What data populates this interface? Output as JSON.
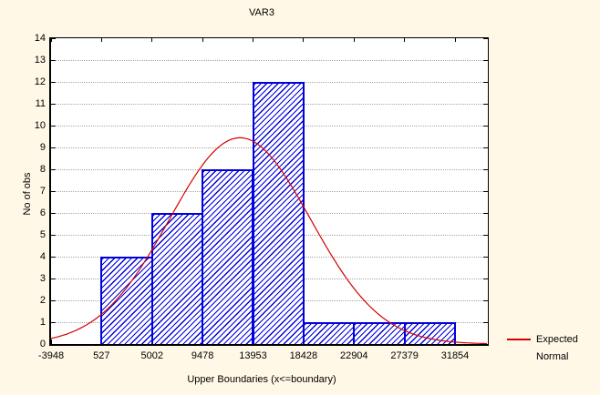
{
  "colors": {
    "window_background": "#FFF8E7",
    "plot_background": "#FFFFFF",
    "axis": "#000000",
    "grid": "#A6A6A6",
    "bar_blue": "#0000DD",
    "curve_red": "#D40000",
    "text": "#000000"
  },
  "chart": {
    "title": "VAR3",
    "x_axis_title": "Upper Boundaries (x<=boundary)",
    "y_axis_title": "No of obs",
    "legend": {
      "line1": "Expected",
      "line2": "Normal"
    }
  },
  "chart_data": {
    "type": "bar",
    "subtype": "histogram-with-expected-normal-overlay",
    "title": "VAR3",
    "xlabel": "Upper Boundaries (x<=boundary)",
    "ylabel": "No of obs",
    "bin_boundaries": [
      -3948,
      527,
      5002,
      9478,
      13953,
      18428,
      22904,
      27379,
      31854
    ],
    "x_tick_labels": [
      "-3948",
      "527",
      "5002",
      "9478",
      "13953",
      "18428",
      "22904",
      "27379",
      "31854"
    ],
    "counts": [
      0,
      4,
      6,
      8,
      12,
      1,
      1,
      1
    ],
    "total_n": 33,
    "y_ticks": [
      0,
      1,
      2,
      3,
      4,
      5,
      6,
      7,
      8,
      9,
      10,
      11,
      12,
      13,
      14
    ],
    "ylim": [
      0,
      14
    ],
    "grid": "horizontal dotted",
    "legend_position": "right-bottom",
    "bar_style": "blue diagonal hatch",
    "series": [
      {
        "name": "No of obs",
        "type": "histogram-bars",
        "values": [
          0,
          4,
          6,
          8,
          12,
          1,
          1,
          1
        ]
      },
      {
        "name": "Expected Normal",
        "type": "line",
        "model": "normal",
        "n": 33,
        "bin_width": 4475.375,
        "mean": 12800,
        "sigma": 6240,
        "peak_expected_value": 9.44
      }
    ]
  }
}
